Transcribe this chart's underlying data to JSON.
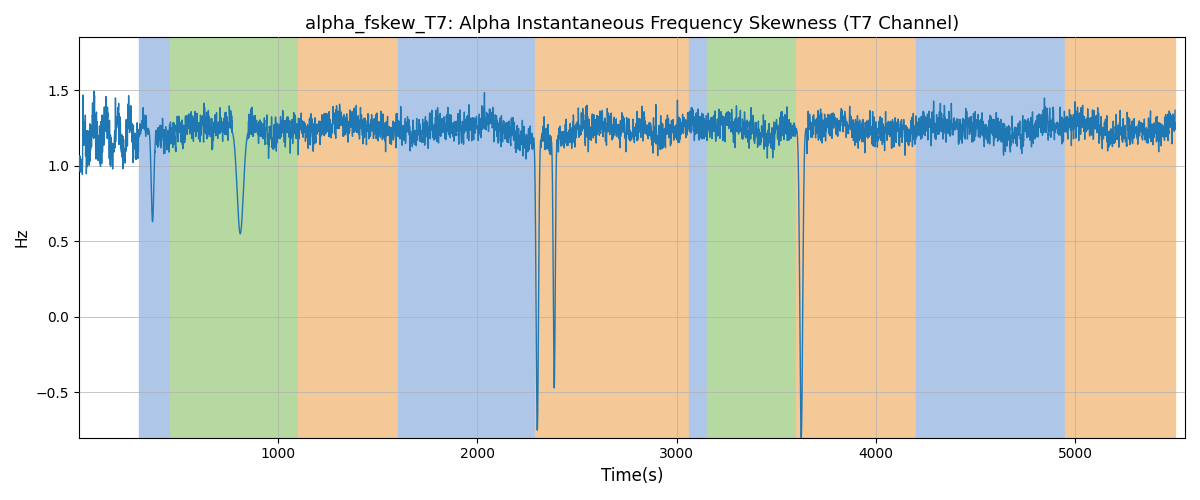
{
  "title": "alpha_fskew_T7: Alpha Instantaneous Frequency Skewness (T7 Channel)",
  "xlabel": "Time(s)",
  "ylabel": "Hz",
  "background_regions": [
    {
      "start": 300,
      "end": 460,
      "color": "#aec6e8"
    },
    {
      "start": 460,
      "end": 1100,
      "color": "#b5d9a0"
    },
    {
      "start": 1100,
      "end": 1600,
      "color": "#f5c897"
    },
    {
      "start": 1600,
      "end": 2290,
      "color": "#aec6e8"
    },
    {
      "start": 2290,
      "end": 3060,
      "color": "#f5c897"
    },
    {
      "start": 3060,
      "end": 3150,
      "color": "#aec6e8"
    },
    {
      "start": 3150,
      "end": 3600,
      "color": "#b5d9a0"
    },
    {
      "start": 3600,
      "end": 4200,
      "color": "#f5c897"
    },
    {
      "start": 4200,
      "end": 4950,
      "color": "#aec6e8"
    },
    {
      "start": 4950,
      "end": 5500,
      "color": "#f5c897"
    }
  ],
  "ylim": [
    -0.8,
    1.85
  ],
  "xlim": [
    0,
    5550
  ],
  "grid_color": "#b0b0b0",
  "line_color": "#1f77b4",
  "line_width": 1.0,
  "title_fontsize": 13,
  "xlabel_fontsize": 12,
  "ylabel_fontsize": 11,
  "seed": 42,
  "n_points": 5500,
  "base_value": 1.25,
  "noise_scale": 0.075
}
